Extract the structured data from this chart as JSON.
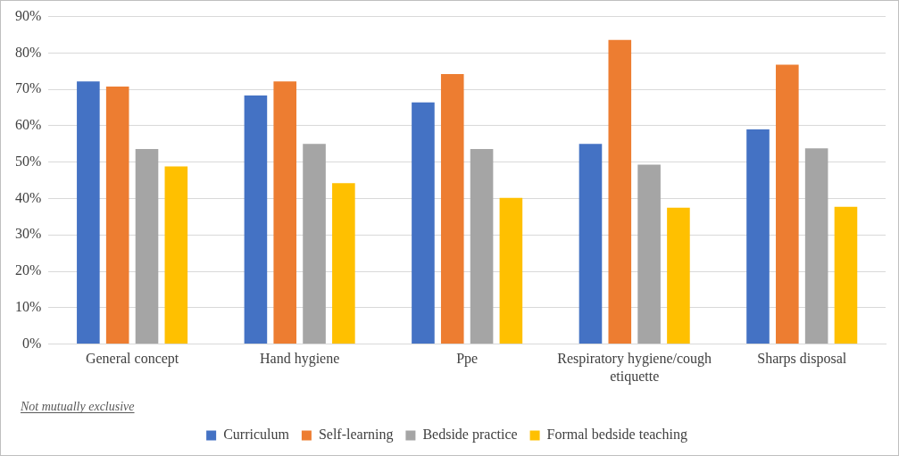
{
  "chart_data": {
    "type": "bar",
    "categories": [
      "General concept",
      "Hand hygiene",
      "Ppe",
      "Respiratory hygiene/cough etiquette",
      "Sharps disposal"
    ],
    "series": [
      {
        "name": "Curriculum",
        "color": "#4472c4",
        "values": [
          72.2,
          68.3,
          66.4,
          55,
          59
        ]
      },
      {
        "name": "Self-learning",
        "color": "#ed7d31",
        "values": [
          70.8,
          72.2,
          74.2,
          83.6,
          76.8
        ]
      },
      {
        "name": "Bedside practice",
        "color": "#a5a5a5",
        "values": [
          53.6,
          55,
          53.6,
          49.3,
          53.8
        ]
      },
      {
        "name": "Formal bedside teaching",
        "color": "#ffc000",
        "values": [
          48.8,
          44.2,
          40.2,
          37.5,
          37.7
        ]
      }
    ],
    "ylim": [
      0,
      90
    ],
    "yticks": [
      {
        "value": 0,
        "label": "0%"
      },
      {
        "value": 10,
        "label": "10%"
      },
      {
        "value": 20,
        "label": "20%"
      },
      {
        "value": 30,
        "label": "30%"
      },
      {
        "value": 40,
        "label": "40%"
      },
      {
        "value": 50,
        "label": "50%"
      },
      {
        "value": 60,
        "label": "60%"
      },
      {
        "value": 70,
        "label": "70%"
      },
      {
        "value": 80,
        "label": "80%"
      },
      {
        "value": 90,
        "label": "90%"
      }
    ],
    "grid": "y",
    "legend": "bottom",
    "annotations": [
      "Not mutually exclusive"
    ]
  }
}
